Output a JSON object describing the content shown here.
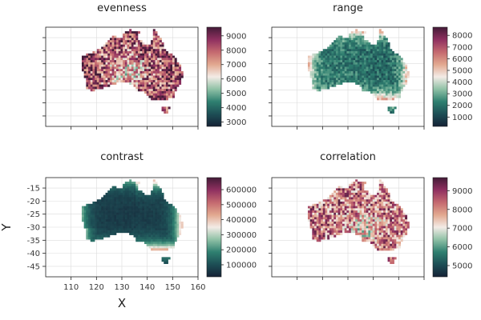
{
  "chart_data": {
    "type": "heatmap",
    "xlabel": "X",
    "ylabel": "Y",
    "xticks": [
      110,
      120,
      130,
      140,
      150,
      160
    ],
    "yticks": [
      -15,
      -20,
      -25,
      -30,
      -35,
      -40,
      -45
    ],
    "xlim": [
      100,
      160
    ],
    "ylim": [
      -49,
      -11
    ],
    "grid": true,
    "colormap_stops": [
      "#152236",
      "#1d4e55",
      "#2f8070",
      "#8fc1a6",
      "#f3ebe6",
      "#e2a88f",
      "#c4696f",
      "#8f3060",
      "#431b37"
    ],
    "panels": [
      {
        "title": "evenness",
        "colorbar_ticks": [
          "3000",
          "4000",
          "5000",
          "6000",
          "7000",
          "8000",
          "9000"
        ],
        "colorbar_range": [
          2700,
          9600
        ],
        "tone": 0.74
      },
      {
        "title": "range",
        "colorbar_ticks": [
          "1000",
          "2000",
          "3000",
          "4000",
          "5000",
          "6000",
          "7000",
          "8000"
        ],
        "colorbar_range": [
          200,
          8700
        ],
        "tone": 0.22
      },
      {
        "title": "contrast",
        "colorbar_ticks": [
          "100000",
          "200000",
          "300000",
          "400000",
          "500000",
          "600000"
        ],
        "colorbar_range": [
          20000,
          680000
        ],
        "tone": 0.1
      },
      {
        "title": "correlation",
        "colorbar_ticks": [
          "5000",
          "6000",
          "7000",
          "8000",
          "9000"
        ],
        "colorbar_range": [
          4400,
          9700
        ],
        "tone": 0.66
      }
    ]
  }
}
